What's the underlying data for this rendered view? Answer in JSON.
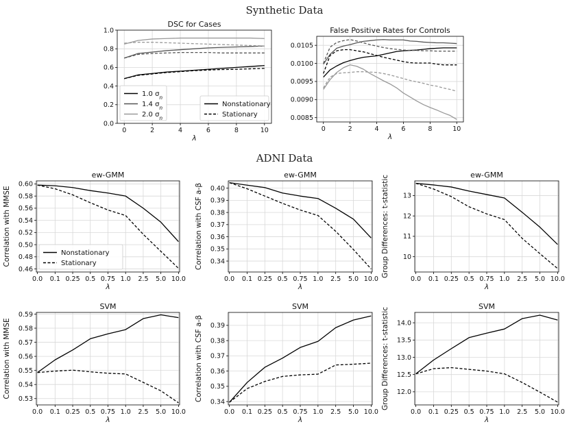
{
  "sections": {
    "synthetic_title": "Synthetic Data",
    "adni_title": "ADNI Data"
  },
  "chart_data": [
    {
      "id": "dsc",
      "type": "line",
      "title": "DSC for Cases",
      "xlabel": "λ",
      "ylabel": "",
      "x": [
        0,
        1,
        2,
        3,
        4,
        5,
        6,
        7,
        8,
        9,
        10
      ],
      "xlim": [
        -0.5,
        10.5
      ],
      "ylim": [
        0.0,
        1.0
      ],
      "xticks": [
        0,
        2,
        4,
        6,
        8,
        10
      ],
      "xtick_labels": [
        "0",
        "2",
        "4",
        "6",
        "8",
        "10"
      ],
      "yticks": [
        0.0,
        0.2,
        0.4,
        0.6,
        0.8,
        1.0
      ],
      "ytick_labels": [
        "0.0",
        "0.2",
        "0.4",
        "0.6",
        "0.8",
        "1.0"
      ],
      "series": [
        {
          "name": "1.0 σn Nonstationary",
          "color": "#000000",
          "dash": "solid",
          "values": [
            0.48,
            0.52,
            0.535,
            0.55,
            0.56,
            0.57,
            0.58,
            0.59,
            0.6,
            0.61,
            0.62
          ]
        },
        {
          "name": "1.0 σn Stationary",
          "color": "#000000",
          "dash": "dashed",
          "values": [
            0.48,
            0.515,
            0.53,
            0.545,
            0.555,
            0.565,
            0.572,
            0.577,
            0.58,
            0.585,
            0.59
          ]
        },
        {
          "name": "1.4 σn Nonstationary",
          "color": "#555555",
          "dash": "solid",
          "values": [
            0.7,
            0.75,
            0.765,
            0.78,
            0.79,
            0.8,
            0.81,
            0.815,
            0.82,
            0.825,
            0.83
          ]
        },
        {
          "name": "1.4 σn Stationary",
          "color": "#555555",
          "dash": "dashed",
          "values": [
            0.7,
            0.74,
            0.75,
            0.755,
            0.76,
            0.76,
            0.76,
            0.755,
            0.755,
            0.755,
            0.755
          ]
        },
        {
          "name": "2.0 σn Nonstationary",
          "color": "#999999",
          "dash": "solid",
          "values": [
            0.85,
            0.89,
            0.905,
            0.91,
            0.915,
            0.915,
            0.915,
            0.915,
            0.915,
            0.915,
            0.91
          ]
        },
        {
          "name": "2.0 σn Stationary",
          "color": "#999999",
          "dash": "dashed",
          "values": [
            0.86,
            0.87,
            0.87,
            0.865,
            0.86,
            0.855,
            0.85,
            0.845,
            0.84,
            0.835,
            0.83
          ]
        }
      ],
      "legends": [
        {
          "placement": "lower-left",
          "entries": [
            {
              "label": "1.0 σ",
              "sub": "n",
              "color": "#000000",
              "dash": "solid"
            },
            {
              "label": "1.4 σ",
              "sub": "n",
              "color": "#555555",
              "dash": "solid"
            },
            {
              "label": "2.0 σ",
              "sub": "n",
              "color": "#999999",
              "dash": "solid"
            }
          ]
        },
        {
          "placement": "lower-right",
          "entries": [
            {
              "label": "Nonstationary",
              "color": "#000000",
              "dash": "solid"
            },
            {
              "label": "Stationary",
              "color": "#000000",
              "dash": "dashed"
            }
          ]
        }
      ]
    },
    {
      "id": "fpr",
      "type": "line",
      "title": "False Positive Rates for Controls",
      "xlabel": "λ",
      "ylabel": "",
      "x": [
        0,
        0.5,
        1,
        1.5,
        2,
        2.5,
        3,
        3.5,
        4,
        4.5,
        5,
        5.5,
        6,
        6.5,
        7,
        7.5,
        8,
        8.5,
        9,
        9.5,
        10
      ],
      "xlim": [
        -0.5,
        10.5
      ],
      "ylim": [
        0.00838,
        0.01075
      ],
      "xticks": [
        0,
        2,
        4,
        6,
        8,
        10
      ],
      "xtick_labels": [
        "0",
        "2",
        "4",
        "6",
        "8",
        "10"
      ],
      "yticks": [
        0.0085,
        0.009,
        0.0095,
        0.01,
        0.0105
      ],
      "ytick_labels": [
        "0.0085",
        "0.0090",
        "0.0095",
        "0.0100",
        "0.0105"
      ],
      "series": [
        {
          "name": "1.0 σn Nonstationary",
          "color": "#000000",
          "dash": "solid",
          "values": [
            0.00962,
            0.00982,
            0.00993,
            0.01002,
            0.01008,
            0.01013,
            0.01017,
            0.01019,
            0.01021,
            0.01025,
            0.01029,
            0.01033,
            0.01035,
            0.01036,
            0.01037,
            0.01039,
            0.01041,
            0.01042,
            0.01043,
            0.01043,
            0.01043
          ]
        },
        {
          "name": "1.0 σn Stationary",
          "color": "#000000",
          "dash": "dashed",
          "values": [
            0.00972,
            0.01022,
            0.01035,
            0.01038,
            0.01038,
            0.01035,
            0.01032,
            0.01027,
            0.01022,
            0.01017,
            0.01013,
            0.01009,
            0.01005,
            0.01002,
            0.01001,
            0.01001,
            0.01001,
            0.00998,
            0.00996,
            0.00996,
            0.00996
          ]
        },
        {
          "name": "1.4 σn Nonstationary",
          "color": "#555555",
          "dash": "solid",
          "values": [
            0.00998,
            0.01025,
            0.01042,
            0.01048,
            0.01052,
            0.01057,
            0.01061,
            0.01063,
            0.01065,
            0.01066,
            0.01065,
            0.01065,
            0.01065,
            0.01062,
            0.01061,
            0.01059,
            0.01058,
            0.01057,
            0.01057,
            0.01056,
            0.01055
          ]
        },
        {
          "name": "1.4 σn Stationary",
          "color": "#555555",
          "dash": "dashed",
          "values": [
            0.01,
            0.01045,
            0.01058,
            0.01063,
            0.01066,
            0.01062,
            0.01057,
            0.01052,
            0.01048,
            0.01044,
            0.01041,
            0.01039,
            0.01037,
            0.01036,
            0.01036,
            0.01035,
            0.01035,
            0.01034,
            0.01034,
            0.01034,
            0.01034
          ]
        },
        {
          "name": "2.0 σn Nonstationary",
          "color": "#999999",
          "dash": "solid",
          "values": [
            0.00928,
            0.00955,
            0.00975,
            0.00988,
            0.00996,
            0.00992,
            0.00984,
            0.00972,
            0.00962,
            0.00952,
            0.00943,
            0.00932,
            0.00918,
            0.00907,
            0.00896,
            0.00886,
            0.00878,
            0.00871,
            0.00863,
            0.00856,
            0.00845
          ]
        },
        {
          "name": "2.0 σn Stationary",
          "color": "#999999",
          "dash": "dashed",
          "values": [
            0.00932,
            0.00962,
            0.00972,
            0.00974,
            0.00975,
            0.00977,
            0.00977,
            0.00976,
            0.00975,
            0.00972,
            0.00968,
            0.00963,
            0.00958,
            0.00953,
            0.00949,
            0.00945,
            0.0094,
            0.00937,
            0.00932,
            0.00928,
            0.00923
          ]
        }
      ]
    },
    {
      "id": "gmm_mmse",
      "type": "line",
      "title": "ew-GMM",
      "xlabel": "λ",
      "ylabel": "Correlation with MMSE",
      "categories": [
        "0.0",
        "0.1",
        "0.25",
        "0.5",
        "0.75",
        "1.0",
        "2.5",
        "5.0",
        "10.0"
      ],
      "ylim": [
        0.455,
        0.605
      ],
      "yticks": [
        0.46,
        0.48,
        0.5,
        0.52,
        0.54,
        0.56,
        0.58,
        0.6
      ],
      "ytick_labels": [
        "0.46",
        "0.48",
        "0.50",
        "0.52",
        "0.54",
        "0.56",
        "0.58",
        "0.60"
      ],
      "series": [
        {
          "name": "Nonstationary",
          "color": "#000000",
          "dash": "solid",
          "values": [
            0.598,
            0.597,
            0.594,
            0.589,
            0.585,
            0.58,
            0.56,
            0.537,
            0.505
          ]
        },
        {
          "name": "Stationary",
          "color": "#000000",
          "dash": "dashed",
          "values": [
            0.598,
            0.592,
            0.582,
            0.569,
            0.557,
            0.548,
            0.517,
            0.489,
            0.461
          ]
        }
      ],
      "legends": [
        {
          "placement": "lower-left",
          "entries": [
            {
              "label": "Nonstationary",
              "color": "#000000",
              "dash": "solid"
            },
            {
              "label": "Stationary",
              "color": "#000000",
              "dash": "dashed"
            }
          ]
        }
      ]
    },
    {
      "id": "gmm_csf",
      "type": "line",
      "title": "ew-GMM",
      "xlabel": "λ",
      "ylabel": "Correlation with CSF a-β",
      "categories": [
        "0.0",
        "0.1",
        "0.25",
        "0.5",
        "0.75",
        "1.0",
        "2.5",
        "5.0",
        "10.0"
      ],
      "ylim": [
        0.331,
        0.406
      ],
      "yticks": [
        0.34,
        0.35,
        0.36,
        0.37,
        0.38,
        0.39,
        0.4
      ],
      "ytick_labels": [
        "0.34",
        "0.35",
        "0.36",
        "0.37",
        "0.38",
        "0.39",
        "0.40"
      ],
      "series": [
        {
          "name": "Nonstationary",
          "color": "#000000",
          "dash": "solid",
          "values": [
            0.4045,
            0.4025,
            0.4005,
            0.396,
            0.3935,
            0.3915,
            0.3835,
            0.3745,
            0.359
          ]
        },
        {
          "name": "Stationary",
          "color": "#000000",
          "dash": "dashed",
          "values": [
            0.4045,
            0.3995,
            0.3935,
            0.3875,
            0.382,
            0.3775,
            0.3645,
            0.3495,
            0.3335
          ]
        }
      ]
    },
    {
      "id": "gmm_tstat",
      "type": "line",
      "title": "ew-GMM",
      "xlabel": "λ",
      "ylabel": "Group Differences: t-statistic",
      "categories": [
        "0.0",
        "0.1",
        "0.25",
        "0.5",
        "0.75",
        "1.0",
        "2.5",
        "5.0",
        "10.0"
      ],
      "ylim": [
        9.25,
        13.72
      ],
      "yticks": [
        10,
        11,
        12,
        13
      ],
      "ytick_labels": [
        "10",
        "11",
        "12",
        "13"
      ],
      "series": [
        {
          "name": "Nonstationary",
          "color": "#000000",
          "dash": "solid",
          "values": [
            13.6,
            13.52,
            13.42,
            13.22,
            13.05,
            12.88,
            12.18,
            11.45,
            10.6
          ]
        },
        {
          "name": "Stationary",
          "color": "#000000",
          "dash": "dashed",
          "values": [
            13.6,
            13.32,
            12.95,
            12.45,
            12.1,
            11.82,
            10.9,
            10.15,
            9.42
          ]
        }
      ]
    },
    {
      "id": "svm_mmse",
      "type": "line",
      "title": "SVM",
      "xlabel": "λ",
      "ylabel": "Correlation with MMSE",
      "categories": [
        "0.0",
        "0.1",
        "0.25",
        "0.5",
        "0.75",
        "1.0",
        "2.5",
        "5.0",
        "10.0"
      ],
      "ylim": [
        0.5255,
        0.5912
      ],
      "yticks": [
        0.53,
        0.54,
        0.55,
        0.56,
        0.57,
        0.58,
        0.59
      ],
      "ytick_labels": [
        "0.53",
        "0.54",
        "0.55",
        "0.56",
        "0.57",
        "0.58",
        "0.59"
      ],
      "series": [
        {
          "name": "Nonstationary",
          "color": "#000000",
          "dash": "solid",
          "values": [
            0.5485,
            0.5575,
            0.5645,
            0.5725,
            0.576,
            0.579,
            0.5868,
            0.5895,
            0.5875
          ]
        },
        {
          "name": "Stationary",
          "color": "#000000",
          "dash": "dashed",
          "values": [
            0.5485,
            0.5495,
            0.5502,
            0.549,
            0.548,
            0.5475,
            0.5415,
            0.5355,
            0.527
          ]
        }
      ]
    },
    {
      "id": "svm_csf",
      "type": "line",
      "title": "SVM",
      "xlabel": "λ",
      "ylabel": "Correlation with CSF a-β",
      "categories": [
        "0.0",
        "0.1",
        "0.25",
        "0.5",
        "0.75",
        "1.0",
        "2.5",
        "5.0",
        "10.0"
      ],
      "ylim": [
        0.3378,
        0.3985
      ],
      "yticks": [
        0.34,
        0.35,
        0.36,
        0.37,
        0.38,
        0.39
      ],
      "ytick_labels": [
        "0.34",
        "0.35",
        "0.36",
        "0.37",
        "0.38",
        "0.39"
      ],
      "series": [
        {
          "name": "Nonstationary",
          "color": "#000000",
          "dash": "solid",
          "values": [
            0.3395,
            0.3525,
            0.3625,
            0.3685,
            0.3755,
            0.3795,
            0.3885,
            0.3935,
            0.3962
          ]
        },
        {
          "name": "Stationary",
          "color": "#000000",
          "dash": "dashed",
          "values": [
            0.3395,
            0.3485,
            0.3532,
            0.3565,
            0.3575,
            0.358,
            0.364,
            0.3645,
            0.3652
          ]
        }
      ]
    },
    {
      "id": "svm_tstat",
      "type": "line",
      "title": "SVM",
      "xlabel": "λ",
      "ylabel": "Group Differences: t-statistic",
      "categories": [
        "0.0",
        "0.1",
        "0.25",
        "0.5",
        "0.75",
        "1.0",
        "2.5",
        "5.0",
        "10.0"
      ],
      "ylim": [
        11.62,
        14.3
      ],
      "yticks": [
        12.0,
        12.5,
        13.0,
        13.5,
        14.0
      ],
      "ytick_labels": [
        "12.0",
        "12.5",
        "13.0",
        "13.5",
        "14.0"
      ],
      "series": [
        {
          "name": "Nonstationary",
          "color": "#000000",
          "dash": "solid",
          "values": [
            12.52,
            12.92,
            13.25,
            13.57,
            13.7,
            13.82,
            14.12,
            14.22,
            14.08
          ]
        },
        {
          "name": "Stationary",
          "color": "#000000",
          "dash": "dashed",
          "values": [
            12.52,
            12.67,
            12.7,
            12.65,
            12.6,
            12.52,
            12.27,
            11.99,
            11.7
          ]
        }
      ]
    }
  ]
}
